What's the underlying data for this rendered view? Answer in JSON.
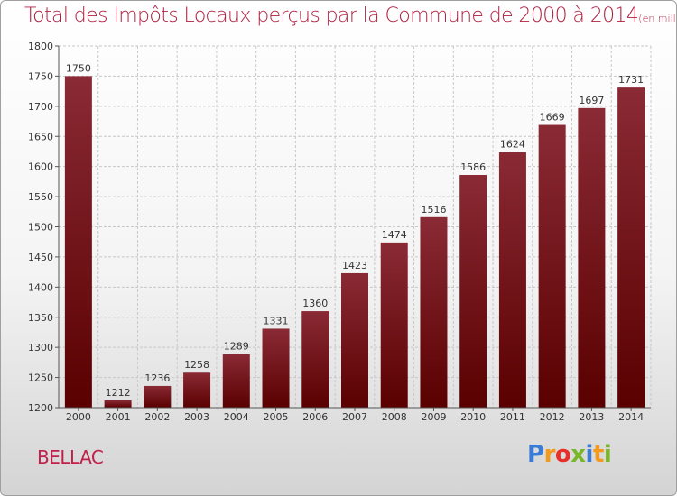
{
  "header": {
    "title": "Total des Impôts Locaux perçus par la Commune de 2000 à 2014",
    "unit": "(en milliers d'€)"
  },
  "commune": "BELLAC",
  "logo": {
    "text": "Proxiti"
  },
  "colors": {
    "bar_top": "#8a2a35",
    "bar_bottom": "#5a0000",
    "title": "#b01f3f",
    "grid": "#c8c8c8"
  },
  "chart_data": {
    "type": "bar",
    "title": "Total des Impôts Locaux perçus par la Commune de 2000 à 2014",
    "xlabel": "",
    "ylabel": "",
    "categories": [
      "2000",
      "2001",
      "2002",
      "2003",
      "2004",
      "2005",
      "2006",
      "2007",
      "2008",
      "2009",
      "2010",
      "2011",
      "2012",
      "2013",
      "2014"
    ],
    "values": [
      1750,
      1212,
      1236,
      1258,
      1289,
      1331,
      1360,
      1423,
      1474,
      1516,
      1586,
      1624,
      1669,
      1697,
      1731
    ],
    "ylim": [
      1200,
      1800
    ],
    "yticks": [
      1200,
      1250,
      1300,
      1350,
      1400,
      1450,
      1500,
      1550,
      1600,
      1650,
      1700,
      1750,
      1800
    ],
    "grid": true
  }
}
